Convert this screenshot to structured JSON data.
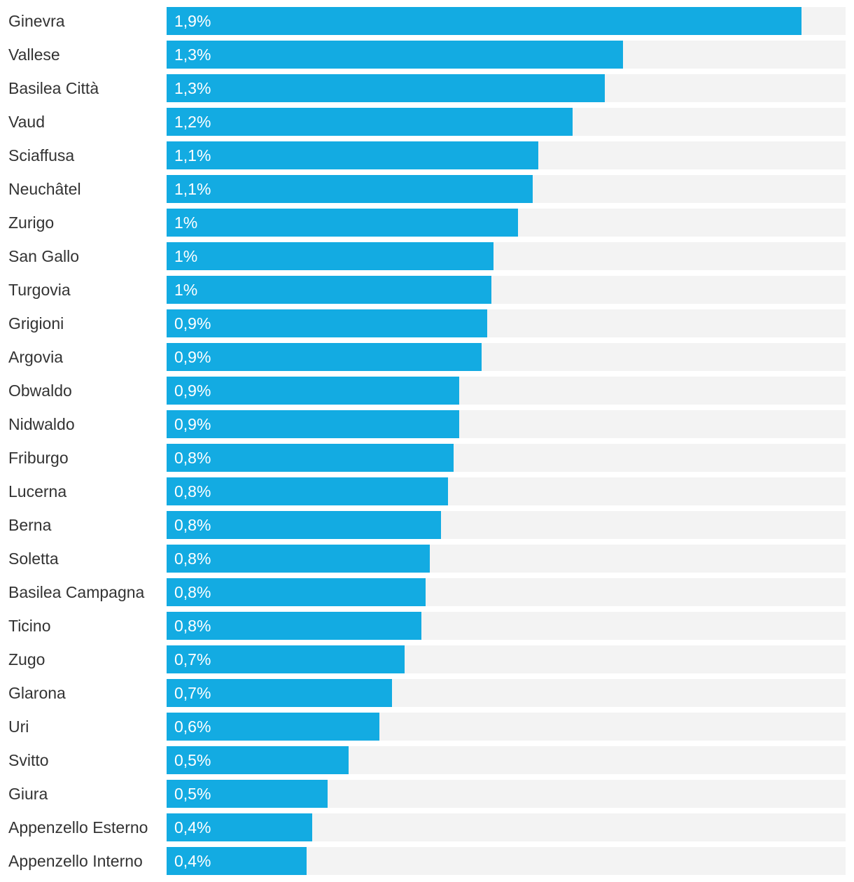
{
  "chart_data": {
    "type": "bar",
    "orientation": "horizontal",
    "categories": [
      "Ginevra",
      "Vallese",
      "Basilea Città",
      "Vaud",
      "Sciaffusa",
      "Neuchâtel",
      "Zurigo",
      "San Gallo",
      "Turgovia",
      "Grigioni",
      "Argovia",
      "Obwaldo",
      "Nidwaldo",
      "Friburgo",
      "Lucerna",
      "Berna",
      "Soletta",
      "Basilea Campagna",
      "Ticino",
      "Zugo",
      "Glarona",
      "Uri",
      "Svitto",
      "Giura",
      "Appenzello Esterno",
      "Appenzello Interno"
    ],
    "values": [
      1.87,
      1.345,
      1.29,
      1.195,
      1.095,
      1.078,
      1.036,
      0.962,
      0.957,
      0.945,
      0.928,
      0.862,
      0.862,
      0.845,
      0.829,
      0.808,
      0.775,
      0.763,
      0.75,
      0.701,
      0.664,
      0.627,
      0.536,
      0.474,
      0.429,
      0.412
    ],
    "value_labels": [
      "1,9%",
      "1,3%",
      "1,3%",
      "1,2%",
      "1,1%",
      "1,1%",
      "1%",
      "1%",
      "1%",
      "0,9%",
      "0,9%",
      "0,9%",
      "0,9%",
      "0,8%",
      "0,8%",
      "0,8%",
      "0,8%",
      "0,8%",
      "0,8%",
      "0,7%",
      "0,7%",
      "0,6%",
      "0,5%",
      "0,5%",
      "0,4%",
      "0,4%"
    ],
    "xlim": [
      0,
      2
    ],
    "title": "",
    "xlabel": "",
    "ylabel": "",
    "grid": false,
    "legend": "none",
    "colors": {
      "bar": "#13abe2",
      "track": "#f3f3f3",
      "label_text": "#333333",
      "value_text": "#ffffff"
    }
  }
}
